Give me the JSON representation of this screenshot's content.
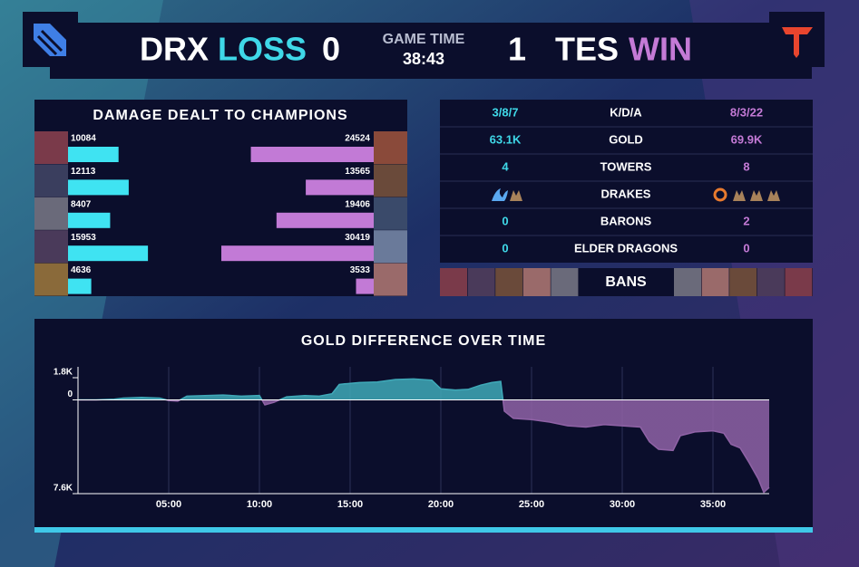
{
  "header": {
    "team1": "DRX",
    "result1": "LOSS",
    "score1": 0,
    "game_time_label": "GAME TIME",
    "game_time": "38:43",
    "score2": 1,
    "team2": "TES",
    "result2": "WIN"
  },
  "damage": {
    "title": "DAMAGE DEALT TO CHAMPIONS",
    "left": [
      10084,
      12113,
      8407,
      15953,
      4636
    ],
    "right": [
      24524,
      13565,
      19406,
      30419,
      3533
    ],
    "left_color": "#3fe3f2",
    "right_color": "#c27ad6"
  },
  "stats": {
    "rows": [
      {
        "label": "K/D/A",
        "left": "3/8/7",
        "right": "8/3/22"
      },
      {
        "label": "GOLD",
        "left": "63.1K",
        "right": "69.9K"
      },
      {
        "label": "TOWERS",
        "left": 4,
        "right": 8
      },
      {
        "label": "DRAKES"
      },
      {
        "label": "BARONS",
        "left": 0,
        "right": 2
      },
      {
        "label": "ELDER DRAGONS",
        "left": 0,
        "right": 0
      }
    ],
    "bans_label": "BANS"
  },
  "chart_data": {
    "type": "area",
    "title": "GOLD DIFFERENCE OVER TIME",
    "x": [
      0,
      1,
      2,
      2.5,
      3.5,
      4.5,
      5,
      5.5,
      6,
      7,
      8,
      9,
      10,
      10.3,
      10.8,
      11.5,
      12.5,
      13.3,
      14,
      14.4,
      14.7,
      15.5,
      16.5,
      17.5,
      18.5,
      19.5,
      20,
      20.8,
      21.5,
      22.2,
      22.8,
      23.3,
      23.5,
      24,
      25,
      26,
      27,
      28,
      29,
      30,
      31,
      31.5,
      32,
      32.8,
      33.2,
      34,
      35,
      35.6,
      36,
      36.5,
      37,
      37.5,
      37.8,
      38.1
    ],
    "series": [
      {
        "values": [
          0,
          0,
          50,
          150,
          200,
          150,
          -50,
          -100,
          300,
          350,
          400,
          300,
          350,
          -400,
          -200,
          250,
          350,
          300,
          500,
          1250,
          1300,
          1400,
          1450,
          1650,
          1700,
          1600,
          900,
          800,
          850,
          1200,
          1400,
          1500,
          -900,
          -1500,
          -1600,
          -1800,
          -2100,
          -2200,
          -2000,
          -2100,
          -2200,
          -3400,
          -4000,
          -4100,
          -2900,
          -2600,
          -2500,
          -2700,
          -3600,
          -3900,
          -5100,
          -6400,
          -7500,
          -7100
        ]
      }
    ],
    "positive_color": "#3fa9b8",
    "negative_color": "#8f62a6",
    "xlim": [
      0,
      38.1
    ],
    "ylim": [
      -7600,
      1800
    ],
    "xticks": [
      {
        "value": 5,
        "label": "05:00"
      },
      {
        "value": 10,
        "label": "10:00"
      },
      {
        "value": 15,
        "label": "15:00"
      },
      {
        "value": 20,
        "label": "20:00"
      },
      {
        "value": 25,
        "label": "25:00"
      },
      {
        "value": 30,
        "label": "30:00"
      },
      {
        "value": 35,
        "label": "35:00"
      }
    ],
    "yticks": [
      {
        "value": 1800,
        "label": "1.8K"
      },
      0,
      {
        "value": -7600,
        "label": "7.6K"
      }
    ],
    "grid": true
  }
}
